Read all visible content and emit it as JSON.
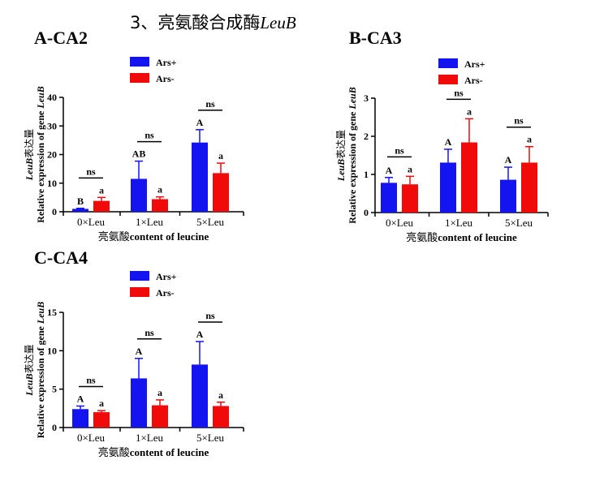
{
  "page_title": {
    "prefix": "3、亮氨酸合成酶",
    "italic": "LeuB"
  },
  "colors": {
    "ars_plus": "#1414f0",
    "ars_minus": "#f00a0a"
  },
  "chart_data": [
    {
      "type": "bar",
      "title": "A-CA2",
      "categories": [
        "0×Leu",
        "1×Leu",
        "5×Leu"
      ],
      "xlabel_cn": "亮氨酸",
      "xlabel_en": "content of leucine",
      "ylabel_line1_italic": "LeuB",
      "ylabel_line1_cn": "表达量",
      "ylabel_line2": "Relative expression of gene ",
      "ylabel_line2_italic": "LeuB",
      "ylim": [
        0,
        40
      ],
      "yticks": [
        0,
        10,
        20,
        30,
        40
      ],
      "legend_placement": "top-center",
      "series": [
        {
          "name": "Ars+",
          "color": "#1414f0",
          "values": [
            1.0,
            11.5,
            24.2
          ],
          "errors": [
            0.2,
            6.2,
            4.5
          ],
          "labels": [
            "B",
            "AB",
            "A"
          ]
        },
        {
          "name": "Ars-",
          "color": "#f00a0a",
          "values": [
            3.8,
            4.4,
            13.5
          ],
          "errors": [
            1.2,
            0.8,
            3.5
          ],
          "labels": [
            "a",
            "a",
            "a"
          ]
        }
      ],
      "significance": [
        "ns",
        "ns",
        "ns"
      ]
    },
    {
      "type": "bar",
      "title": "B-CA3",
      "categories": [
        "0×Leu",
        "1×Leu",
        "5×Leu"
      ],
      "xlabel_cn": "亮氨酸",
      "xlabel_en": "content of leucine",
      "ylabel_line1_italic": "LeuB",
      "ylabel_line1_cn": "表达量",
      "ylabel_line2": "Relative expression of gene ",
      "ylabel_line2_italic": "LeuB",
      "ylim": [
        0,
        3
      ],
      "yticks": [
        0,
        1,
        2,
        3
      ],
      "legend_placement": "top-center",
      "series": [
        {
          "name": "Ars+",
          "color": "#1414f0",
          "values": [
            0.78,
            1.31,
            0.86
          ],
          "errors": [
            0.14,
            0.35,
            0.33
          ],
          "labels": [
            "A",
            "A",
            "A"
          ]
        },
        {
          "name": "Ars-",
          "color": "#f00a0a",
          "values": [
            0.74,
            1.84,
            1.31
          ],
          "errors": [
            0.21,
            0.62,
            0.42
          ],
          "labels": [
            "a",
            "a",
            "a"
          ]
        }
      ],
      "significance": [
        "ns",
        "ns",
        "ns"
      ]
    },
    {
      "type": "bar",
      "title": "C-CA4",
      "categories": [
        "0×Leu",
        "1×Leu",
        "5×Leu"
      ],
      "xlabel_cn": "亮氨酸",
      "xlabel_en": "content of leucine",
      "ylabel_line1_italic": "LeuB",
      "ylabel_line1_cn": "表达量",
      "ylabel_line2": "Relative expression of gene ",
      "ylabel_line2_italic": "LeuB",
      "ylim": [
        0,
        15
      ],
      "yticks": [
        0,
        5,
        10,
        15
      ],
      "legend_placement": "top-center",
      "series": [
        {
          "name": "Ars+",
          "color": "#1414f0",
          "values": [
            2.4,
            6.4,
            8.2
          ],
          "errors": [
            0.4,
            2.6,
            3.0
          ],
          "labels": [
            "A",
            "A",
            "A"
          ]
        },
        {
          "name": "Ars-",
          "color": "#f00a0a",
          "values": [
            2.0,
            2.9,
            2.8
          ],
          "errors": [
            0.2,
            0.7,
            0.5
          ],
          "labels": [
            "a",
            "a",
            "a"
          ]
        }
      ],
      "significance": [
        "ns",
        "ns",
        "ns"
      ]
    }
  ]
}
